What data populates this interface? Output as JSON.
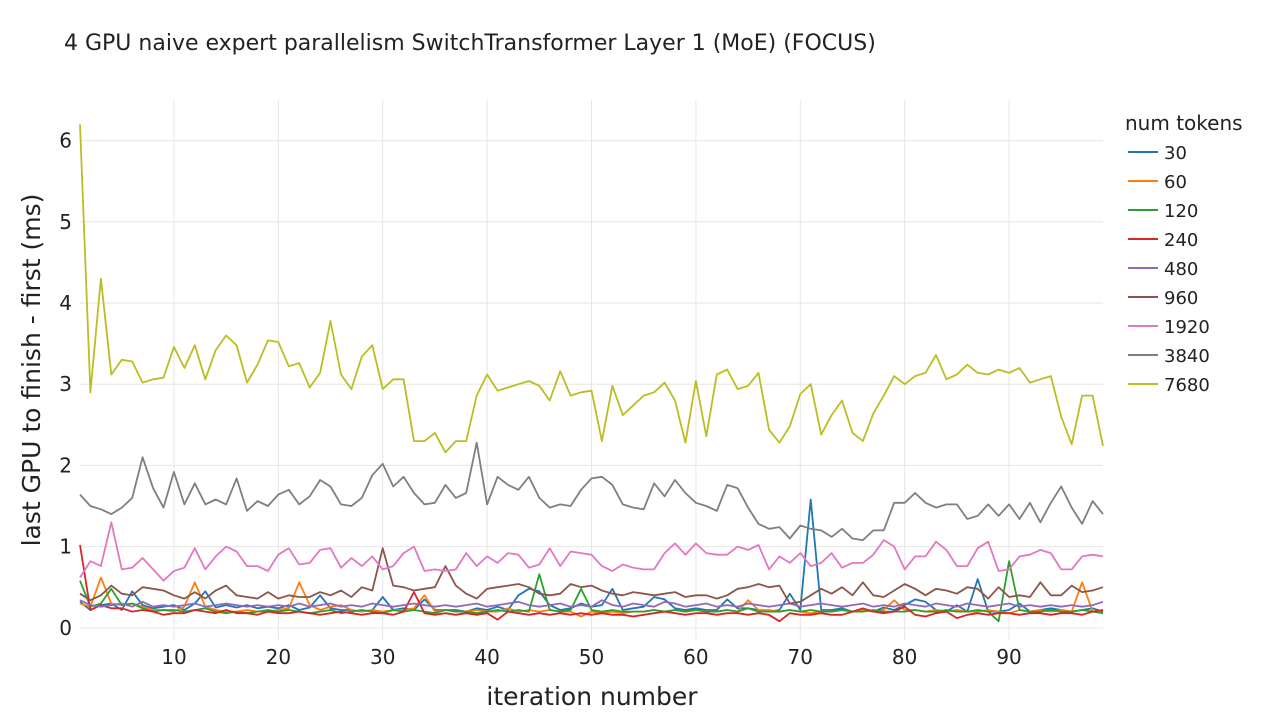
{
  "chart_data": {
    "type": "line",
    "title": "4 GPU naive expert parallelism SwitchTransformer Layer 1 (MoE) (FOCUS)",
    "xlabel": "iteration number",
    "ylabel": "last GPU to finish - first (ms)",
    "xlim": [
      1,
      99
    ],
    "ylim": [
      -0.15,
      6.5
    ],
    "xticks": [
      10,
      20,
      30,
      40,
      50,
      60,
      70,
      80,
      90
    ],
    "yticks": [
      0,
      1,
      2,
      3,
      4,
      5,
      6
    ],
    "grid": true,
    "legend": {
      "title": "num tokens",
      "position": "right"
    },
    "series": [
      {
        "name": "30",
        "color": "#1f77b4",
        "values": [
          0.32,
          0.22,
          0.28,
          0.3,
          0.22,
          0.45,
          0.28,
          0.24,
          0.26,
          0.28,
          0.22,
          0.3,
          0.45,
          0.25,
          0.28,
          0.25,
          0.28,
          0.24,
          0.26,
          0.24,
          0.28,
          0.22,
          0.25,
          0.4,
          0.24,
          0.22,
          0.22,
          0.2,
          0.22,
          0.38,
          0.22,
          0.24,
          0.22,
          0.35,
          0.22,
          0.22,
          0.22,
          0.2,
          0.24,
          0.22,
          0.26,
          0.22,
          0.4,
          0.48,
          0.45,
          0.28,
          0.22,
          0.24,
          0.3,
          0.26,
          0.28,
          0.48,
          0.22,
          0.24,
          0.26,
          0.38,
          0.35,
          0.24,
          0.22,
          0.24,
          0.22,
          0.22,
          0.35,
          0.24,
          0.24,
          0.22,
          0.2,
          0.22,
          0.42,
          0.22,
          1.58,
          0.22,
          0.22,
          0.24,
          0.2,
          0.22,
          0.2,
          0.25,
          0.22,
          0.28,
          0.35,
          0.32,
          0.22,
          0.2,
          0.28,
          0.2,
          0.6,
          0.2,
          0.2,
          0.22,
          0.3,
          0.2,
          0.22,
          0.24,
          0.22,
          0.2,
          0.22,
          0.24,
          0.2
        ]
      },
      {
        "name": "60",
        "color": "#ff7f0e",
        "values": [
          0.3,
          0.26,
          0.62,
          0.3,
          0.28,
          0.3,
          0.26,
          0.22,
          0.22,
          0.2,
          0.26,
          0.56,
          0.26,
          0.22,
          0.2,
          0.2,
          0.22,
          0.2,
          0.2,
          0.22,
          0.24,
          0.56,
          0.28,
          0.22,
          0.26,
          0.28,
          0.22,
          0.2,
          0.22,
          0.2,
          0.22,
          0.22,
          0.24,
          0.4,
          0.2,
          0.22,
          0.2,
          0.2,
          0.22,
          0.2,
          0.2,
          0.24,
          0.2,
          0.22,
          0.2,
          0.22,
          0.2,
          0.2,
          0.14,
          0.2,
          0.18,
          0.2,
          0.18,
          0.2,
          0.2,
          0.22,
          0.2,
          0.22,
          0.2,
          0.22,
          0.2,
          0.2,
          0.22,
          0.2,
          0.34,
          0.22,
          0.22,
          0.2,
          0.22,
          0.2,
          0.18,
          0.2,
          0.2,
          0.22,
          0.2,
          0.22,
          0.2,
          0.22,
          0.34,
          0.22,
          0.22,
          0.2,
          0.22,
          0.2,
          0.22,
          0.2,
          0.2,
          0.22,
          0.2,
          0.18,
          0.22,
          0.2,
          0.22,
          0.2,
          0.22,
          0.2,
          0.56,
          0.2,
          0.22
        ]
      },
      {
        "name": "120",
        "color": "#2ca02c",
        "values": [
          0.58,
          0.26,
          0.3,
          0.48,
          0.28,
          0.3,
          0.24,
          0.2,
          0.22,
          0.22,
          0.2,
          0.22,
          0.24,
          0.2,
          0.18,
          0.2,
          0.18,
          0.2,
          0.22,
          0.2,
          0.22,
          0.2,
          0.18,
          0.2,
          0.22,
          0.18,
          0.2,
          0.22,
          0.2,
          0.18,
          0.22,
          0.2,
          0.22,
          0.2,
          0.18,
          0.22,
          0.2,
          0.2,
          0.18,
          0.2,
          0.22,
          0.2,
          0.22,
          0.2,
          0.66,
          0.22,
          0.2,
          0.22,
          0.48,
          0.22,
          0.2,
          0.22,
          0.2,
          0.2,
          0.2,
          0.22,
          0.2,
          0.22,
          0.2,
          0.22,
          0.2,
          0.2,
          0.22,
          0.2,
          0.24,
          0.2,
          0.2,
          0.2,
          0.22,
          0.2,
          0.22,
          0.2,
          0.2,
          0.22,
          0.2,
          0.2,
          0.22,
          0.2,
          0.2,
          0.2,
          0.22,
          0.2,
          0.2,
          0.22,
          0.2,
          0.2,
          0.22,
          0.2,
          0.08,
          0.82,
          0.22,
          0.2,
          0.2,
          0.22,
          0.2,
          0.2,
          0.22,
          0.2,
          0.18
        ]
      },
      {
        "name": "240",
        "color": "#d62728",
        "values": [
          1.02,
          0.22,
          0.28,
          0.24,
          0.24,
          0.2,
          0.22,
          0.2,
          0.16,
          0.18,
          0.18,
          0.22,
          0.2,
          0.18,
          0.22,
          0.18,
          0.18,
          0.16,
          0.2,
          0.18,
          0.18,
          0.2,
          0.18,
          0.16,
          0.18,
          0.2,
          0.18,
          0.16,
          0.18,
          0.18,
          0.16,
          0.2,
          0.44,
          0.18,
          0.16,
          0.18,
          0.16,
          0.18,
          0.16,
          0.18,
          0.1,
          0.2,
          0.18,
          0.16,
          0.18,
          0.16,
          0.18,
          0.16,
          0.18,
          0.16,
          0.18,
          0.16,
          0.16,
          0.14,
          0.16,
          0.18,
          0.2,
          0.18,
          0.16,
          0.18,
          0.18,
          0.16,
          0.18,
          0.18,
          0.16,
          0.18,
          0.16,
          0.08,
          0.18,
          0.16,
          0.16,
          0.18,
          0.16,
          0.16,
          0.2,
          0.24,
          0.2,
          0.18,
          0.2,
          0.26,
          0.16,
          0.14,
          0.18,
          0.2,
          0.12,
          0.16,
          0.18,
          0.16,
          0.18,
          0.18,
          0.16,
          0.18,
          0.18,
          0.16,
          0.18,
          0.18,
          0.16,
          0.2,
          0.22
        ]
      },
      {
        "name": "480",
        "color": "#9467bd",
        "values": [
          0.34,
          0.28,
          0.26,
          0.28,
          0.3,
          0.26,
          0.32,
          0.26,
          0.28,
          0.26,
          0.28,
          0.3,
          0.26,
          0.28,
          0.3,
          0.28,
          0.26,
          0.28,
          0.26,
          0.28,
          0.26,
          0.3,
          0.26,
          0.28,
          0.3,
          0.26,
          0.28,
          0.26,
          0.3,
          0.28,
          0.26,
          0.28,
          0.3,
          0.28,
          0.26,
          0.28,
          0.26,
          0.28,
          0.3,
          0.26,
          0.28,
          0.3,
          0.32,
          0.28,
          0.26,
          0.28,
          0.3,
          0.26,
          0.28,
          0.26,
          0.34,
          0.28,
          0.26,
          0.3,
          0.28,
          0.26,
          0.32,
          0.3,
          0.26,
          0.28,
          0.3,
          0.26,
          0.28,
          0.26,
          0.3,
          0.28,
          0.26,
          0.28,
          0.3,
          0.26,
          0.28,
          0.3,
          0.28,
          0.26,
          0.28,
          0.3,
          0.26,
          0.28,
          0.26,
          0.3,
          0.28,
          0.26,
          0.3,
          0.28,
          0.26,
          0.3,
          0.28,
          0.26,
          0.28,
          0.3,
          0.26,
          0.28,
          0.26,
          0.28,
          0.26,
          0.28,
          0.26,
          0.28,
          0.32
        ]
      },
      {
        "name": "960",
        "color": "#8c564b",
        "values": [
          0.42,
          0.34,
          0.4,
          0.52,
          0.42,
          0.4,
          0.5,
          0.48,
          0.46,
          0.4,
          0.36,
          0.44,
          0.36,
          0.46,
          0.52,
          0.4,
          0.38,
          0.36,
          0.44,
          0.36,
          0.4,
          0.38,
          0.38,
          0.44,
          0.4,
          0.46,
          0.38,
          0.5,
          0.46,
          0.98,
          0.52,
          0.5,
          0.46,
          0.48,
          0.5,
          0.76,
          0.52,
          0.42,
          0.36,
          0.48,
          0.5,
          0.52,
          0.54,
          0.5,
          0.42,
          0.4,
          0.42,
          0.54,
          0.5,
          0.52,
          0.46,
          0.42,
          0.4,
          0.44,
          0.42,
          0.4,
          0.42,
          0.44,
          0.38,
          0.4,
          0.4,
          0.36,
          0.4,
          0.48,
          0.5,
          0.54,
          0.5,
          0.52,
          0.3,
          0.32,
          0.4,
          0.48,
          0.42,
          0.5,
          0.4,
          0.56,
          0.4,
          0.38,
          0.46,
          0.54,
          0.48,
          0.4,
          0.48,
          0.46,
          0.42,
          0.5,
          0.48,
          0.36,
          0.5,
          0.38,
          0.4,
          0.38,
          0.56,
          0.4,
          0.4,
          0.52,
          0.44,
          0.46,
          0.5
        ]
      },
      {
        "name": "1920",
        "color": "#e377c2",
        "values": [
          0.62,
          0.82,
          0.76,
          1.3,
          0.72,
          0.74,
          0.86,
          0.72,
          0.58,
          0.7,
          0.74,
          0.98,
          0.72,
          0.88,
          1.0,
          0.94,
          0.76,
          0.76,
          0.7,
          0.9,
          0.98,
          0.78,
          0.8,
          0.96,
          0.98,
          0.74,
          0.86,
          0.76,
          0.88,
          0.72,
          0.76,
          0.92,
          1.0,
          0.7,
          0.72,
          0.7,
          0.72,
          0.92,
          0.76,
          0.88,
          0.8,
          0.92,
          0.9,
          0.74,
          0.78,
          0.98,
          0.76,
          0.94,
          0.92,
          0.9,
          0.76,
          0.7,
          0.78,
          0.74,
          0.72,
          0.72,
          0.92,
          1.04,
          0.9,
          1.04,
          0.92,
          0.9,
          0.9,
          1.0,
          0.96,
          1.02,
          0.72,
          0.88,
          0.8,
          0.92,
          0.76,
          0.8,
          0.92,
          0.74,
          0.8,
          0.8,
          0.9,
          1.08,
          1.0,
          0.72,
          0.88,
          0.88,
          1.06,
          0.96,
          0.76,
          0.76,
          0.98,
          1.06,
          0.7,
          0.72,
          0.88,
          0.9,
          0.96,
          0.92,
          0.72,
          0.72,
          0.88,
          0.9,
          0.88
        ]
      },
      {
        "name": "3840",
        "color": "#7f7f7f",
        "values": [
          1.64,
          1.5,
          1.46,
          1.4,
          1.48,
          1.6,
          2.1,
          1.72,
          1.48,
          1.92,
          1.52,
          1.78,
          1.52,
          1.58,
          1.52,
          1.84,
          1.44,
          1.56,
          1.5,
          1.64,
          1.7,
          1.52,
          1.62,
          1.82,
          1.74,
          1.52,
          1.5,
          1.6,
          1.88,
          2.02,
          1.74,
          1.86,
          1.66,
          1.52,
          1.54,
          1.76,
          1.6,
          1.66,
          2.28,
          1.52,
          1.86,
          1.76,
          1.7,
          1.86,
          1.6,
          1.48,
          1.52,
          1.5,
          1.7,
          1.84,
          1.86,
          1.76,
          1.52,
          1.48,
          1.46,
          1.78,
          1.62,
          1.82,
          1.66,
          1.54,
          1.5,
          1.44,
          1.76,
          1.72,
          1.48,
          1.28,
          1.22,
          1.24,
          1.1,
          1.26,
          1.22,
          1.2,
          1.12,
          1.22,
          1.1,
          1.08,
          1.2,
          1.2,
          1.54,
          1.54,
          1.66,
          1.54,
          1.48,
          1.52,
          1.52,
          1.34,
          1.38,
          1.52,
          1.38,
          1.52,
          1.34,
          1.54,
          1.3,
          1.54,
          1.74,
          1.48,
          1.28,
          1.56,
          1.4
        ]
      },
      {
        "name": "7680",
        "color": "#bcbd22",
        "values": [
          6.2,
          2.9,
          4.3,
          3.12,
          3.3,
          3.28,
          3.02,
          3.06,
          3.08,
          3.46,
          3.2,
          3.48,
          3.06,
          3.42,
          3.6,
          3.48,
          3.02,
          3.24,
          3.54,
          3.52,
          3.22,
          3.26,
          2.96,
          3.14,
          3.78,
          3.12,
          2.94,
          3.34,
          3.48,
          2.94,
          3.06,
          3.06,
          2.3,
          2.3,
          2.4,
          2.16,
          2.3,
          2.3,
          2.86,
          3.12,
          2.92,
          2.96,
          3.0,
          3.04,
          2.98,
          2.8,
          3.16,
          2.86,
          2.9,
          2.92,
          2.3,
          2.98,
          2.62,
          2.74,
          2.86,
          2.9,
          3.02,
          2.8,
          2.28,
          3.04,
          2.36,
          3.12,
          3.18,
          2.94,
          2.98,
          3.14,
          2.44,
          2.28,
          2.48,
          2.88,
          3.0,
          2.38,
          2.62,
          2.8,
          2.4,
          2.3,
          2.64,
          2.86,
          3.1,
          3.0,
          3.1,
          3.14,
          3.36,
          3.06,
          3.12,
          3.24,
          3.14,
          3.12,
          3.18,
          3.14,
          3.2,
          3.02,
          3.06,
          3.1,
          2.6,
          2.26,
          2.86,
          2.86,
          2.24
        ]
      }
    ]
  }
}
